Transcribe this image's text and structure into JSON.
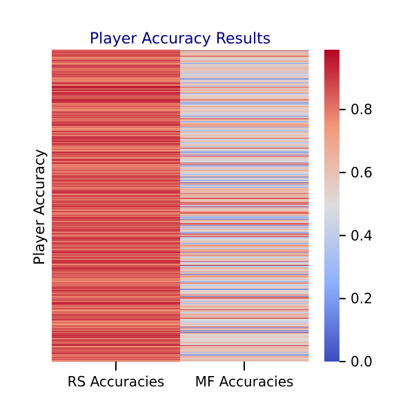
{
  "chart_data": {
    "type": "heatmap",
    "title": "Player Accuracy Results",
    "ylabel": "Player Accuracy",
    "xlabel": "",
    "columns": [
      "RS Accuracies",
      "MF Accuracies"
    ],
    "row_count": 400,
    "colormap": "coolwarm",
    "colorbar": {
      "vmin": 0.0,
      "vmax": 0.99,
      "ticks": [
        0.0,
        0.2,
        0.4,
        0.6,
        0.8
      ],
      "tick_labels": [
        "0.0",
        "0.2",
        "0.4",
        "0.6",
        "0.8"
      ]
    },
    "approx_column_ranges": {
      "RS Accuracies": [
        0.72,
        0.99
      ],
      "MF Accuracies": [
        0.05,
        0.95
      ]
    },
    "grid": false,
    "legend": "colorbar-right"
  }
}
